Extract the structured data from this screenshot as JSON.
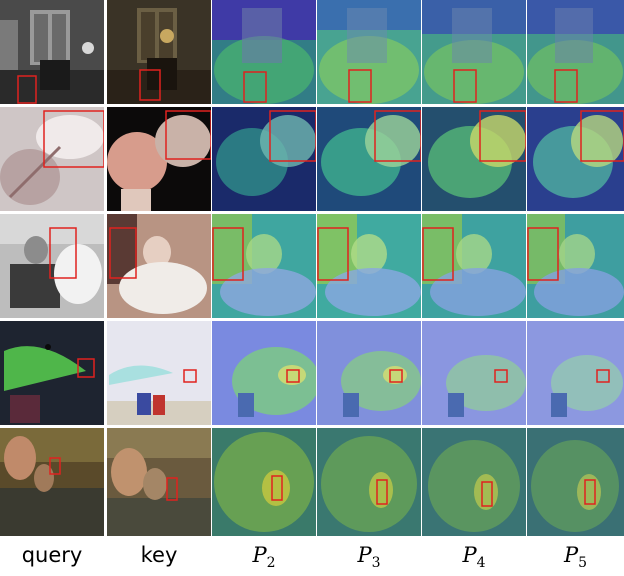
{
  "columns": [
    {
      "id": "query",
      "label": "query",
      "math": false
    },
    {
      "id": "key",
      "label": "key",
      "math": false
    },
    {
      "id": "p2",
      "label": "P",
      "sub": "2",
      "math": true
    },
    {
      "id": "p3",
      "label": "P",
      "sub": "3",
      "math": true
    },
    {
      "id": "p4",
      "label": "P",
      "sub": "4",
      "math": true
    },
    {
      "id": "p5",
      "label": "P",
      "sub": "5",
      "math": true
    }
  ],
  "rows": [
    {
      "scene": "interior room"
    },
    {
      "scene": "wine glasses"
    },
    {
      "scene": "older man at table"
    },
    {
      "scene": "beach umbrella"
    },
    {
      "scene": "horses in water"
    }
  ],
  "colors": {
    "box": "#e0221f",
    "heat_low": "#3b2cc8",
    "heat_mid": "#33c6b0",
    "heat_high": "#e8e030"
  }
}
